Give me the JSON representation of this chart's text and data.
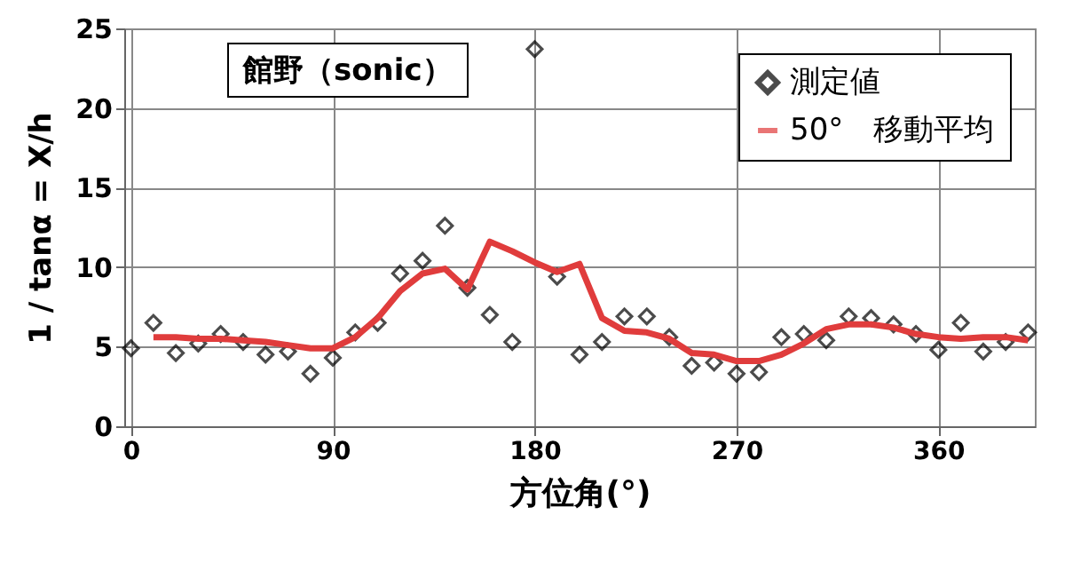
{
  "chart_data": {
    "type": "scatter",
    "title": "館野（sonic）",
    "xlabel": "方位角(°)",
    "ylabel": "1 / tanα = X/h",
    "xlim": [
      -3,
      403
    ],
    "xticks": [
      0,
      90,
      180,
      270,
      360
    ],
    "ylim": [
      0,
      25
    ],
    "yticks": [
      0,
      5,
      10,
      15,
      20,
      25
    ],
    "grid": true,
    "legend": "top right",
    "x": [
      0,
      10,
      20,
      30,
      40,
      50,
      60,
      70,
      80,
      90,
      100,
      110,
      120,
      130,
      140,
      150,
      160,
      170,
      180,
      190,
      200,
      210,
      220,
      230,
      240,
      250,
      260,
      270,
      280,
      290,
      300,
      310,
      320,
      330,
      340,
      350,
      360,
      370,
      380,
      390,
      400
    ],
    "series": [
      {
        "name": "測定値",
        "color": "#000000",
        "marker": "diamond",
        "values": [
          4.9,
          6.5,
          4.6,
          5.2,
          5.8,
          5.3,
          4.5,
          4.7,
          3.3,
          4.3,
          5.9,
          6.5,
          9.6,
          10.4,
          12.6,
          8.7,
          7.0,
          5.3,
          23.7,
          9.4,
          4.5,
          5.3,
          6.9,
          6.9,
          5.6,
          3.8,
          4.0,
          3.3,
          3.4,
          5.6,
          5.8,
          5.4,
          6.9,
          6.8,
          6.4,
          5.8,
          4.8,
          6.5,
          4.7,
          5.3,
          5.9
        ]
      },
      {
        "name": "50°　移動平均",
        "type": "line",
        "marker": "none",
        "color": "#e03c3c",
        "x": [
          10,
          20,
          30,
          40,
          50,
          60,
          70,
          80,
          90,
          100,
          110,
          120,
          130,
          140,
          150,
          160,
          170,
          180,
          190,
          200,
          210,
          220,
          230,
          240,
          250,
          260,
          270,
          280,
          290,
          300,
          310,
          320,
          330,
          340,
          350,
          360,
          370,
          380,
          390,
          400
        ],
        "values": [
          5.6,
          5.6,
          5.5,
          5.5,
          5.4,
          5.3,
          5.1,
          4.9,
          4.9,
          5.6,
          6.8,
          8.5,
          9.6,
          9.9,
          8.6,
          11.6,
          11.0,
          10.3,
          9.7,
          10.2,
          6.8,
          6.0,
          5.9,
          5.5,
          4.6,
          4.5,
          4.1,
          4.1,
          4.5,
          5.2,
          6.1,
          6.4,
          6.4,
          6.2,
          5.8,
          5.6,
          5.5,
          5.6,
          5.6,
          5.4
        ]
      }
    ]
  }
}
